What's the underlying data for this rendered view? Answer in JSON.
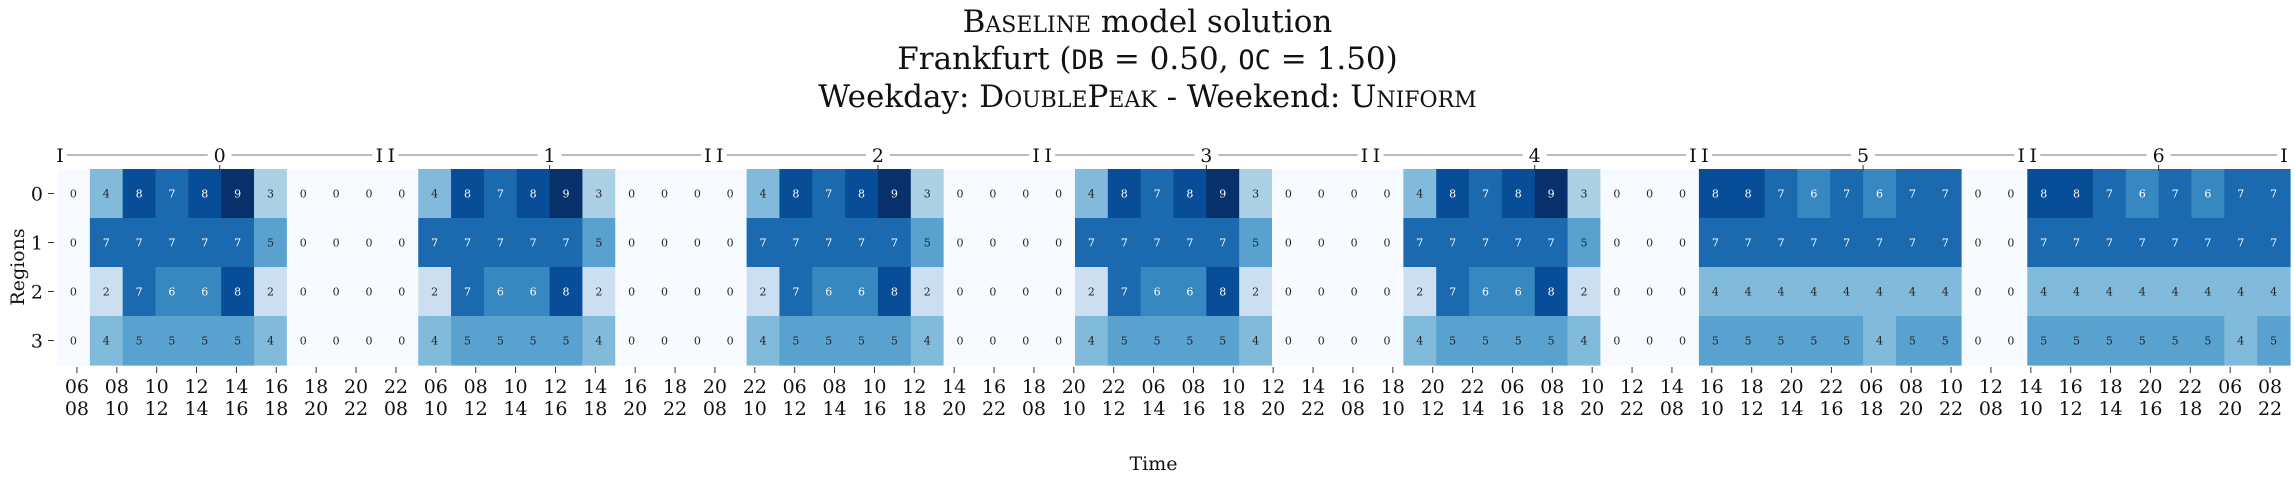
{
  "chart_data": {
    "type": "heatmap",
    "title": {
      "line1_sc": "Baseline",
      "line1_rest": " model solution",
      "line2_pre": "Frankfurt (",
      "line2_db": "DB",
      "line2_mid": " = 0.50, ",
      "line2_oc": "OC",
      "line2_post": " = 1.50)",
      "line3_pre": "Weekday: ",
      "line3_wd": "DoublePeak",
      "line3_mid": " - Weekend: ",
      "line3_we": "Uniform"
    },
    "xlabel": "Time",
    "ylabel": "Regions",
    "regions": [
      "0",
      "1",
      "2",
      "3"
    ],
    "day_labels": [
      "0",
      "1",
      "2",
      "3",
      "4",
      "5",
      "6"
    ],
    "day_bracket_end": "I",
    "day_slots": [
      [
        "06",
        "08",
        "10",
        "12",
        "14",
        "16",
        "18",
        "20"
      ],
      [
        "22",
        "06",
        "08",
        "10",
        "12",
        "14",
        "16",
        "18",
        "20"
      ],
      [
        "22",
        "06",
        "08",
        "10",
        "12",
        "14",
        "16",
        "18",
        "20"
      ],
      [
        "22",
        "06",
        "08",
        "10",
        "12",
        "14",
        "16",
        "18",
        "20"
      ],
      [
        "22",
        "06",
        "08",
        "10",
        "12",
        "14",
        "16",
        "18",
        "20"
      ],
      [
        "22",
        "06",
        "08",
        "10",
        "12",
        "14",
        "16",
        "18",
        "20",
        "22"
      ],
      [
        "06",
        "08",
        "10",
        "12",
        "14",
        "16",
        "18",
        "20"
      ]
    ],
    "x_tick_top": [
      "06",
      "08",
      "10",
      "12",
      "14",
      "16",
      "18",
      "20",
      "22",
      "06",
      "08",
      "10",
      "12",
      "14",
      "16",
      "18",
      "20",
      "22",
      "06",
      "08",
      "10",
      "12",
      "14",
      "16",
      "18",
      "20",
      "22",
      "06",
      "08",
      "10",
      "12",
      "14",
      "16",
      "18",
      "20",
      "22",
      "06",
      "08",
      "10",
      "12",
      "14",
      "16",
      "18",
      "20",
      "22",
      "06",
      "08",
      "10",
      "12",
      "14",
      "16",
      "18",
      "20",
      "22",
      "06",
      "08",
      "10",
      "12",
      "14",
      "16",
      "18",
      "20"
    ],
    "x_tick_bottom": [
      "08",
      "10",
      "12",
      "14",
      "16",
      "18",
      "20",
      "22",
      "08",
      "10",
      "12",
      "14",
      "16",
      "18",
      "20",
      "22",
      "08",
      "10",
      "12",
      "14",
      "16",
      "18",
      "20",
      "22",
      "08",
      "10",
      "12",
      "14",
      "16",
      "18",
      "20",
      "22",
      "08",
      "10",
      "12",
      "14",
      "16",
      "18",
      "20",
      "22",
      "08",
      "10",
      "12",
      "14",
      "16",
      "18",
      "20",
      "22",
      "08",
      "10",
      "12",
      "14",
      "16",
      "18",
      "20",
      "22"
    ],
    "days": [
      [
        [
          0,
          4,
          8,
          7,
          8,
          9,
          3,
          0
        ],
        [
          0,
          7,
          7,
          7,
          7,
          7,
          5,
          0
        ],
        [
          0,
          2,
          7,
          6,
          6,
          8,
          2,
          0
        ],
        [
          0,
          4,
          5,
          5,
          5,
          5,
          4,
          0
        ]
      ],
      [
        [
          0,
          4,
          8,
          7,
          8,
          9,
          3,
          0
        ],
        [
          0,
          7,
          7,
          7,
          7,
          7,
          5,
          0
        ],
        [
          0,
          2,
          7,
          6,
          6,
          8,
          2,
          0
        ],
        [
          0,
          4,
          5,
          5,
          5,
          5,
          4,
          0
        ]
      ],
      [
        [
          0,
          4,
          8,
          7,
          8,
          9,
          3,
          0
        ],
        [
          0,
          7,
          7,
          7,
          7,
          7,
          5,
          0
        ],
        [
          0,
          2,
          7,
          6,
          6,
          8,
          2,
          0
        ],
        [
          0,
          4,
          5,
          5,
          5,
          5,
          4,
          0
        ]
      ],
      [
        [
          0,
          4,
          8,
          7,
          8,
          9,
          3,
          0
        ],
        [
          0,
          7,
          7,
          7,
          7,
          7,
          5,
          0
        ],
        [
          0,
          2,
          7,
          6,
          6,
          8,
          2,
          0
        ],
        [
          0,
          4,
          5,
          5,
          5,
          5,
          4,
          0
        ]
      ],
      [
        [
          0,
          4,
          8,
          7,
          8,
          9,
          3,
          0
        ],
        [
          0,
          7,
          7,
          7,
          7,
          7,
          5,
          0
        ],
        [
          0,
          2,
          7,
          6,
          6,
          8,
          2,
          0
        ],
        [
          0,
          4,
          5,
          5,
          5,
          5,
          4,
          0
        ]
      ],
      [
        [
          8,
          8,
          7,
          6,
          7,
          6,
          7,
          7
        ],
        [
          7,
          7,
          7,
          7,
          7,
          7,
          7,
          7
        ],
        [
          4,
          4,
          4,
          4,
          4,
          4,
          4,
          4
        ],
        [
          5,
          5,
          5,
          5,
          5,
          4,
          5,
          5
        ]
      ],
      [
        [
          8,
          8,
          7,
          6,
          7,
          6,
          7,
          7
        ],
        [
          7,
          7,
          7,
          7,
          7,
          7,
          7,
          7
        ],
        [
          4,
          4,
          4,
          4,
          4,
          4,
          4,
          4
        ],
        [
          5,
          5,
          5,
          5,
          5,
          5,
          4,
          5
        ]
      ]
    ],
    "vmin": 0,
    "vmax": 9,
    "colormap": "Blues",
    "colorbar": false,
    "grid": false,
    "legend": "none"
  }
}
